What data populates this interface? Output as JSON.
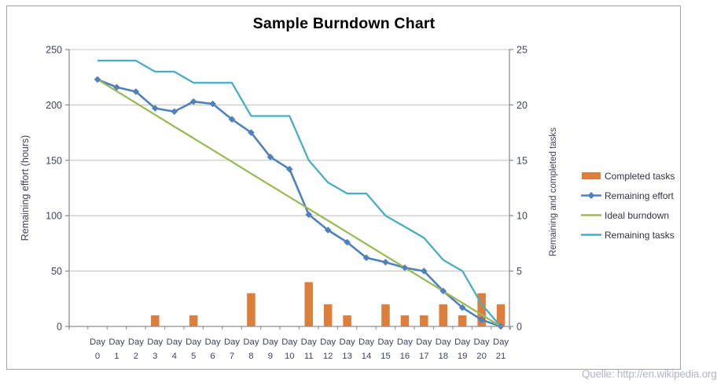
{
  "title": "Sample Burndown Chart",
  "source_note": "Quelle: http://en.wikipedia.org",
  "palette": {
    "bar_orange": "#DD7E3B",
    "effort_blue": "#4F81BD",
    "ideal_green": "#9BBB59",
    "tasks_teal": "#4BACC6",
    "gridline": "#C5C6C8",
    "axis_line": "#8E9095",
    "tick_text": "#3F4458",
    "border": "#A3A3A6",
    "source_text": "#B4B6C8"
  },
  "axes": {
    "left": {
      "title": "Remaining effort (hours)",
      "ticks": [
        250,
        200,
        150,
        100,
        50,
        0
      ]
    },
    "right": {
      "title": "Remaining and completed tasks",
      "ticks": [
        25,
        20,
        15,
        10,
        5,
        0
      ]
    },
    "x": {
      "label_prefix": "Day"
    }
  },
  "legend": [
    {
      "label": "Completed tasks",
      "swatch": "bar",
      "color": "#DD7E3B"
    },
    {
      "label": "Remaining effort",
      "swatch": "line-marker",
      "color": "#4F81BD"
    },
    {
      "label": "Ideal burndown",
      "swatch": "line",
      "color": "#9BBB59"
    },
    {
      "label": "Remaining tasks",
      "swatch": "line",
      "color": "#4BACC6"
    }
  ],
  "chart_data": {
    "type": "bar",
    "subtype": "combo-bar-line",
    "title": "Sample Burndown Chart",
    "x": [
      0,
      1,
      2,
      3,
      4,
      5,
      6,
      7,
      8,
      9,
      10,
      11,
      12,
      13,
      14,
      15,
      16,
      17,
      18,
      19,
      20,
      21
    ],
    "x_label_prefix": "Day",
    "left_ylabel": "Remaining effort (hours)",
    "right_ylabel": "Remaining and completed tasks",
    "left_ylim": [
      0,
      250
    ],
    "right_ylim": [
      0,
      25
    ],
    "grid": true,
    "legend_position": "right",
    "series": [
      {
        "name": "Completed tasks",
        "type": "bar",
        "axis": "right",
        "color": "#DD7E3B",
        "values": [
          0,
          0,
          0,
          1,
          0,
          1,
          0,
          0,
          3,
          0,
          0,
          4,
          2,
          1,
          0,
          2,
          1,
          1,
          2,
          1,
          3,
          2
        ]
      },
      {
        "name": "Remaining effort",
        "type": "line",
        "marker": "diamond",
        "axis": "left",
        "color": "#4F81BD",
        "values": [
          223,
          216,
          212,
          197,
          194,
          203,
          201,
          187,
          175,
          153,
          142,
          101,
          87,
          76,
          62,
          58,
          53,
          50,
          32,
          17,
          6,
          0
        ]
      },
      {
        "name": "Ideal burndown",
        "type": "line",
        "marker": "none",
        "axis": "left",
        "color": "#9BBB59",
        "values": [
          223,
          212.4,
          201.8,
          191.1,
          180.5,
          169.9,
          159.3,
          148.7,
          138,
          127.4,
          116.8,
          106.2,
          95.6,
          85,
          74.3,
          63.7,
          53.1,
          42.5,
          31.9,
          21.2,
          10.6,
          0
        ]
      },
      {
        "name": "Remaining tasks",
        "type": "line",
        "marker": "none",
        "axis": "right",
        "color": "#4BACC6",
        "values": [
          24,
          24,
          24,
          23,
          23,
          22,
          22,
          22,
          19,
          19,
          19,
          15,
          13,
          12,
          12,
          10,
          9,
          8,
          6,
          5,
          2,
          0
        ]
      }
    ]
  }
}
